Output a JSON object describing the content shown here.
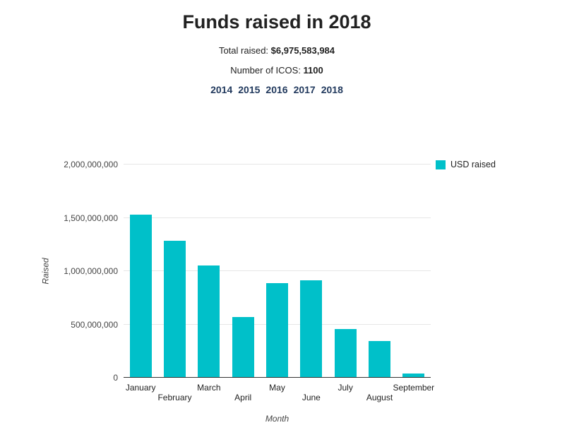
{
  "header": {
    "title": "Funds raised in 2018",
    "total_label": "Total raised: ",
    "total_value": "$6,975,583,984",
    "icos_label": "Number of ICOS: ",
    "icos_value": "1100",
    "years": [
      "2014",
      "2015",
      "2016",
      "2017",
      "2018"
    ]
  },
  "chart_data": {
    "type": "bar",
    "title": "Funds raised in 2018",
    "categories": [
      "January",
      "February",
      "March",
      "April",
      "May",
      "June",
      "July",
      "August",
      "September"
    ],
    "values": [
      1520000000,
      1280000000,
      1045000000,
      560000000,
      880000000,
      910000000,
      450000000,
      335000000,
      30000000
    ],
    "series_name": "USD raised",
    "xlabel": "Month",
    "ylabel": "Raised",
    "ylim": [
      0,
      2000000000
    ],
    "yticks": [
      {
        "value": 0,
        "label": "0"
      },
      {
        "value": 500000000,
        "label": "500,000,000"
      },
      {
        "value": 1000000000,
        "label": "1,000,000,000"
      },
      {
        "value": 1500000000,
        "label": "1,500,000,000"
      },
      {
        "value": 2000000000,
        "label": "2,000,000,000"
      }
    ],
    "legend": {
      "position": "top-right",
      "entries": [
        "USD raised"
      ]
    },
    "grid": true,
    "bar_color": "#00c0c9"
  },
  "colors": {
    "bar": "#00c0c9",
    "year_link": "#223a5e",
    "title": "#212121",
    "tick": "#444444"
  }
}
